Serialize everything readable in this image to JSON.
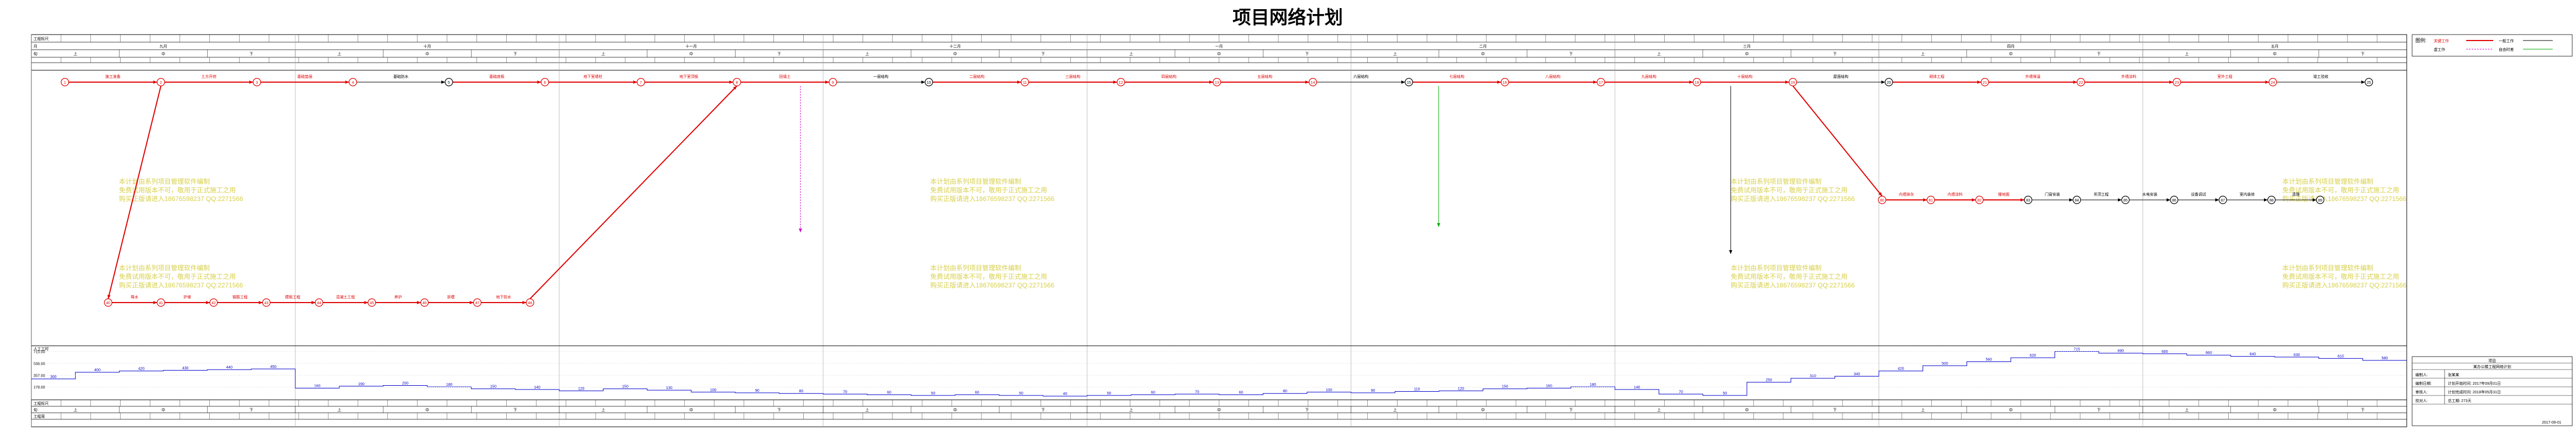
{
  "title": "项目网络计划",
  "header": {
    "row_labels": [
      "工程标尺",
      "月",
      "旬"
    ],
    "months": [
      "九月",
      "十月",
      "十一月",
      "十二月",
      "一月",
      "二月",
      "三月",
      "四月",
      "五月"
    ],
    "ten_day": [
      "上",
      "中",
      "下"
    ]
  },
  "legend": {
    "label": "图例:",
    "critical_work": "关键工作",
    "work": "一般工作",
    "virtual_work": "虚工作",
    "free_time": "自由时差"
  },
  "info_block": {
    "header": "项目",
    "project_name": "某办公楼工程网络计划",
    "rows": [
      {
        "label": "编制人:",
        "value": "张某某"
      },
      {
        "label": "编制日期:",
        "value": "计划开始时间: 2017年09月01日"
      },
      {
        "label": "审核人:",
        "value": "计划完成时间: 2018年05月31日"
      },
      {
        "label": "校对人:",
        "value": "总工期: 273天"
      }
    ],
    "footer": "2017-09-01"
  },
  "resource": {
    "label": "人工工时",
    "y_ticks": [
      "715.00",
      "536.00",
      "357.00",
      "178.00"
    ],
    "values": [
      300,
      400,
      420,
      430,
      440,
      450,
      160,
      190,
      200,
      180,
      150,
      140,
      120,
      150,
      130,
      100,
      90,
      80,
      70,
      60,
      50,
      60,
      50,
      40,
      50,
      60,
      70,
      60,
      80,
      100,
      90,
      110,
      120,
      150,
      160,
      180,
      140,
      70,
      50,
      250,
      310,
      340,
      420,
      500,
      560,
      620,
      715,
      690,
      680,
      660,
      640,
      630,
      610,
      580
    ]
  },
  "network": {
    "upper_tasks": [
      "施工准备",
      "土方开挖",
      "基础垫层",
      "基础防水",
      "基础底板",
      "地下室墙柱",
      "地下室顶板",
      "回填土",
      "一层结构",
      "二层结构",
      "三层结构",
      "四层结构",
      "五层结构",
      "六层结构",
      "七层结构",
      "八层结构",
      "九层结构",
      "十层结构",
      "屋面结构",
      "砌体工程",
      "外墙保温",
      "外墙涂料",
      "室外工程",
      "竣工验收"
    ],
    "lower_tasks": [
      "降水",
      "护坡",
      "钢筋工程",
      "模板工程",
      "混凝土工程",
      "养护",
      "拆模",
      "地下防水"
    ],
    "right_tasks": [
      "内墙抹灰",
      "内墙涂料",
      "楼地面",
      "门窗安装",
      "吊顶工程",
      "水电安装",
      "设备调试",
      "室内装修",
      "清理"
    ]
  },
  "watermark": {
    "line1": "本计划由系列项目管理软件编制",
    "line2": "免费试用版本不可，敬用于正式施工之用",
    "line3": "购买正版请进入18676598237 QQ:2271566"
  },
  "footer_rows": [
    "工程标尺",
    "旬",
    "工程周"
  ]
}
